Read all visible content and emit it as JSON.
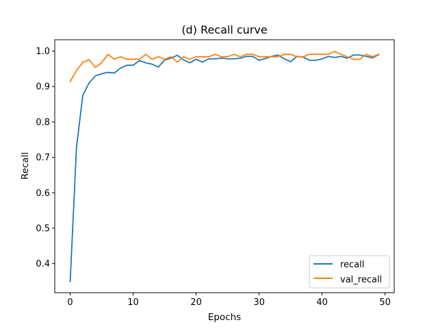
{
  "chart_data": {
    "type": "line",
    "title": "(d) Recall curve",
    "xlabel": "Epochs",
    "ylabel": "Recall",
    "xlim": [
      -2.45,
      51.45
    ],
    "ylim": [
      0.318,
      1.032
    ],
    "xticks": [
      0,
      10,
      20,
      30,
      40,
      50
    ],
    "yticks": [
      0.4,
      0.5,
      0.6,
      0.7,
      0.8,
      0.9,
      1.0
    ],
    "xtick_labels": [
      "0",
      "10",
      "20",
      "30",
      "40",
      "50"
    ],
    "ytick_labels": [
      "0.4",
      "0.5",
      "0.6",
      "0.7",
      "0.8",
      "0.9",
      "1.0"
    ],
    "grid": false,
    "legend_position": "lower-right",
    "x": [
      0,
      1,
      2,
      3,
      4,
      5,
      6,
      7,
      8,
      9,
      10,
      11,
      12,
      13,
      14,
      15,
      16,
      17,
      18,
      19,
      20,
      21,
      22,
      23,
      24,
      25,
      26,
      27,
      28,
      29,
      30,
      31,
      32,
      33,
      34,
      35,
      36,
      37,
      38,
      39,
      40,
      41,
      42,
      43,
      44,
      45,
      46,
      47,
      48,
      49
    ],
    "series": [
      {
        "name": "recall",
        "color": "#1f77b4",
        "values": [
          0.349,
          0.728,
          0.875,
          0.91,
          0.93,
          0.936,
          0.94,
          0.938,
          0.952,
          0.96,
          0.96,
          0.973,
          0.967,
          0.963,
          0.955,
          0.975,
          0.98,
          0.988,
          0.975,
          0.967,
          0.977,
          0.969,
          0.978,
          0.978,
          0.98,
          0.978,
          0.978,
          0.98,
          0.985,
          0.985,
          0.974,
          0.979,
          0.985,
          0.989,
          0.978,
          0.97,
          0.985,
          0.983,
          0.974,
          0.974,
          0.978,
          0.985,
          0.982,
          0.985,
          0.98,
          0.989,
          0.989,
          0.985,
          0.981,
          0.99
        ]
      },
      {
        "name": "val_recall",
        "color": "#ff7f0e",
        "values": [
          0.914,
          0.945,
          0.968,
          0.976,
          0.954,
          0.967,
          0.991,
          0.977,
          0.984,
          0.977,
          0.977,
          0.977,
          0.991,
          0.977,
          0.984,
          0.977,
          0.984,
          0.969,
          0.984,
          0.977,
          0.984,
          0.984,
          0.984,
          0.991,
          0.984,
          0.984,
          0.991,
          0.984,
          0.991,
          0.991,
          0.984,
          0.984,
          0.984,
          0.984,
          0.991,
          0.991,
          0.984,
          0.984,
          0.991,
          0.991,
          0.991,
          0.991,
          0.999,
          0.991,
          0.984,
          0.977,
          0.977,
          0.991,
          0.984,
          0.991
        ]
      }
    ]
  }
}
